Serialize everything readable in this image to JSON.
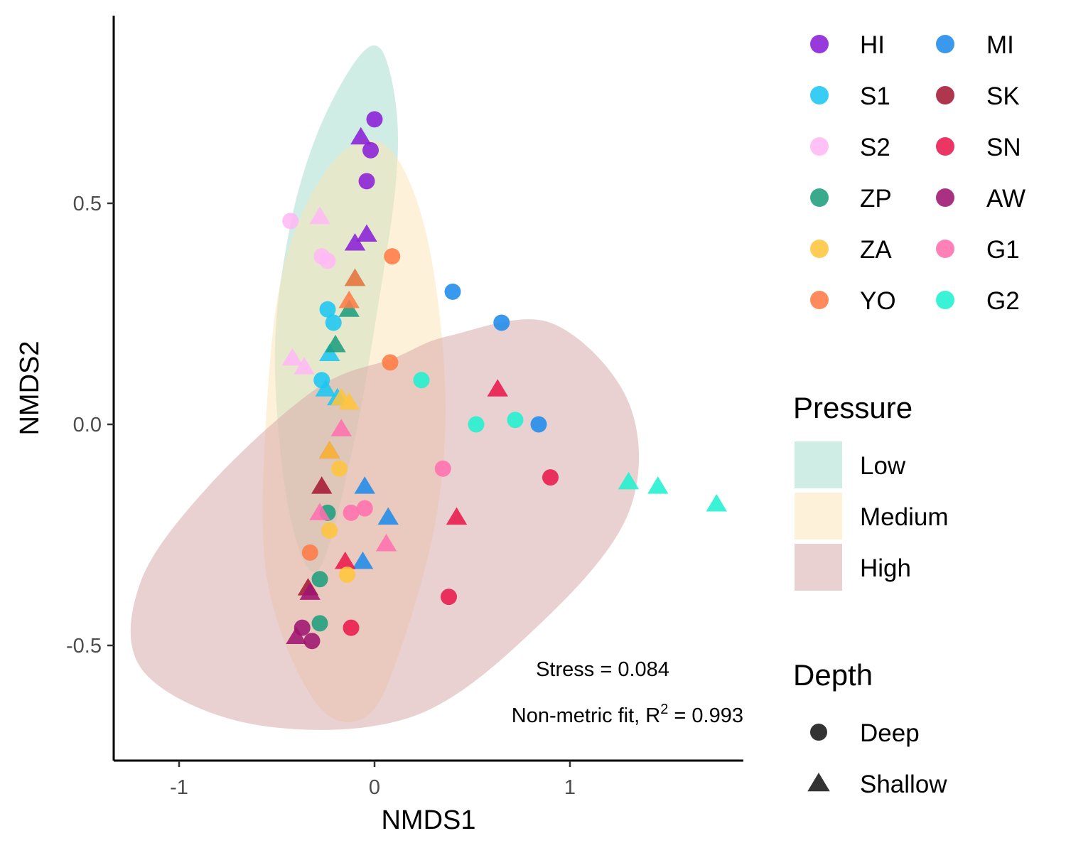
{
  "chart_data": {
    "type": "scatter",
    "xlabel": "NMDS1",
    "ylabel": "NMDS2",
    "xlim": [
      -1.36,
      1.89
    ],
    "ylim": [
      -0.76,
      0.93
    ],
    "xticks": [
      -1,
      0,
      1
    ],
    "xtick_labels": [
      "-1",
      "0",
      "1"
    ],
    "yticks": [
      0.5,
      0.0,
      -0.5
    ],
    "ytick_labels": [
      "0.5",
      "0.0",
      "-0.5"
    ],
    "grid": false,
    "legend_position": "right",
    "annotations": {
      "stress": "Stress = 0.084",
      "fit_prefix": "Non-metric fit, R",
      "fit_superscript": "2",
      "fit_suffix": " = 0.993"
    },
    "site_legend": {
      "title": "",
      "entries": [
        {
          "name": "HI",
          "color": "#8A1FD6"
        },
        {
          "name": "MI",
          "color": "#1F8BEA"
        },
        {
          "name": "S1",
          "color": "#1CC6F2"
        },
        {
          "name": "SK",
          "color": "#A51A36"
        },
        {
          "name": "S2",
          "color": "#FFB8F5"
        },
        {
          "name": "SN",
          "color": "#E8194C"
        },
        {
          "name": "ZP",
          "color": "#1E9E7E"
        },
        {
          "name": "AW",
          "color": "#9E1571"
        },
        {
          "name": "ZA",
          "color": "#FFC53D"
        },
        {
          "name": "G1",
          "color": "#FF6FAE"
        },
        {
          "name": "YO",
          "color": "#FF7B45"
        },
        {
          "name": "G2",
          "color": "#1FF0CF"
        }
      ]
    },
    "pressure_legend": {
      "title": "Pressure",
      "entries": [
        {
          "name": "Low",
          "color": "#9FDBCB"
        },
        {
          "name": "Medium",
          "color": "#FDE3B3"
        },
        {
          "name": "High",
          "color": "#D6A3A3"
        }
      ]
    },
    "depth_legend": {
      "title": "Depth",
      "entries": [
        {
          "name": "Deep",
          "shape": "circle"
        },
        {
          "name": "Shallow",
          "shape": "triangle"
        }
      ]
    },
    "ellipses": [
      {
        "name": "Low",
        "color": "#9FDBCB",
        "opacity": 0.5,
        "points": [
          [
            0.03,
            0.85
          ],
          [
            0.11,
            0.72
          ],
          [
            0.11,
            0.55
          ],
          [
            0.03,
            0.3
          ],
          [
            -0.11,
            -0.05
          ],
          [
            -0.29,
            -0.33
          ],
          [
            -0.44,
            -0.19
          ],
          [
            -0.51,
            0.15
          ],
          [
            -0.44,
            0.43
          ],
          [
            -0.3,
            0.65
          ],
          [
            -0.1,
            0.82
          ]
        ]
      },
      {
        "name": "Medium",
        "color": "#FDE3B3",
        "opacity": 0.5,
        "points": [
          [
            0.06,
            0.63
          ],
          [
            0.26,
            0.44
          ],
          [
            0.36,
            0.1
          ],
          [
            0.32,
            -0.2
          ],
          [
            0.14,
            -0.5
          ],
          [
            -0.04,
            -0.66
          ],
          [
            -0.3,
            -0.63
          ],
          [
            -0.55,
            -0.35
          ],
          [
            -0.55,
            0.05
          ],
          [
            -0.45,
            0.38
          ],
          [
            -0.2,
            0.6
          ]
        ]
      },
      {
        "name": "High",
        "color": "#D6A3A3",
        "opacity": 0.5,
        "points": [
          [
            0.38,
            0.2
          ],
          [
            0.9,
            0.23
          ],
          [
            1.3,
            0.05
          ],
          [
            1.3,
            -0.2
          ],
          [
            0.85,
            -0.45
          ],
          [
            0.2,
            -0.66
          ],
          [
            -0.6,
            -0.68
          ],
          [
            -1.18,
            -0.56
          ],
          [
            -1.2,
            -0.36
          ],
          [
            -0.85,
            -0.14
          ],
          [
            -0.3,
            0.08
          ],
          [
            0.1,
            0.15
          ]
        ]
      }
    ],
    "series": [
      {
        "name": "HI",
        "color": "#8A1FD6",
        "points": [
          [
            0.0,
            0.69,
            "Deep"
          ],
          [
            -0.02,
            0.62,
            "Deep"
          ],
          [
            -0.04,
            0.55,
            "Deep"
          ],
          [
            -0.07,
            0.65,
            "Shallow"
          ],
          [
            -0.04,
            0.43,
            "Shallow"
          ],
          [
            -0.1,
            0.41,
            "Shallow"
          ]
        ]
      },
      {
        "name": "MI",
        "color": "#1F8BEA",
        "points": [
          [
            0.4,
            0.3,
            "Deep"
          ],
          [
            0.65,
            0.23,
            "Deep"
          ],
          [
            0.84,
            0.0,
            "Deep"
          ],
          [
            -0.05,
            -0.14,
            "Shallow"
          ],
          [
            0.07,
            -0.21,
            "Shallow"
          ],
          [
            -0.06,
            -0.31,
            "Shallow"
          ]
        ]
      },
      {
        "name": "S1",
        "color": "#1CC6F2",
        "points": [
          [
            -0.24,
            0.26,
            "Deep"
          ],
          [
            -0.21,
            0.23,
            "Deep"
          ],
          [
            -0.27,
            0.1,
            "Deep"
          ],
          [
            -0.23,
            0.16,
            "Shallow"
          ],
          [
            -0.25,
            0.08,
            "Shallow"
          ],
          [
            -0.19,
            0.06,
            "Shallow"
          ]
        ]
      },
      {
        "name": "SK",
        "color": "#A51A36",
        "points": [
          [
            -0.23,
            -0.06,
            "Shallow"
          ],
          [
            -0.27,
            -0.14,
            "Shallow"
          ],
          [
            -0.34,
            -0.37,
            "Shallow"
          ]
        ]
      },
      {
        "name": "S2",
        "color": "#FFB8F5",
        "points": [
          [
            -0.43,
            0.46,
            "Deep"
          ],
          [
            -0.27,
            0.38,
            "Deep"
          ],
          [
            -0.24,
            0.37,
            "Deep"
          ],
          [
            -0.28,
            0.47,
            "Shallow"
          ],
          [
            -0.42,
            0.15,
            "Shallow"
          ],
          [
            -0.36,
            0.13,
            "Shallow"
          ]
        ]
      },
      {
        "name": "SN",
        "color": "#E8194C",
        "points": [
          [
            0.9,
            -0.12,
            "Deep"
          ],
          [
            0.38,
            -0.39,
            "Deep"
          ],
          [
            -0.12,
            -0.46,
            "Deep"
          ],
          [
            0.63,
            0.08,
            "Shallow"
          ],
          [
            0.42,
            -0.21,
            "Shallow"
          ],
          [
            -0.15,
            -0.31,
            "Shallow"
          ]
        ]
      },
      {
        "name": "ZP",
        "color": "#1E9E7E",
        "points": [
          [
            -0.24,
            -0.2,
            "Deep"
          ],
          [
            -0.28,
            -0.35,
            "Deep"
          ],
          [
            -0.28,
            -0.45,
            "Deep"
          ],
          [
            -0.1,
            0.33,
            "Shallow"
          ],
          [
            -0.13,
            0.26,
            "Shallow"
          ],
          [
            -0.2,
            0.18,
            "Shallow"
          ]
        ]
      },
      {
        "name": "AW",
        "color": "#9E1571",
        "points": [
          [
            -0.37,
            -0.46,
            "Deep"
          ],
          [
            -0.32,
            -0.49,
            "Deep"
          ],
          [
            -0.4,
            -0.48,
            "Shallow"
          ],
          [
            -0.33,
            -0.38,
            "Shallow"
          ]
        ]
      },
      {
        "name": "ZA",
        "color": "#FFC53D",
        "points": [
          [
            -0.18,
            -0.1,
            "Deep"
          ],
          [
            -0.23,
            -0.24,
            "Deep"
          ],
          [
            -0.14,
            -0.34,
            "Deep"
          ],
          [
            -0.17,
            0.06,
            "Shallow"
          ],
          [
            -0.13,
            0.05,
            "Shallow"
          ],
          [
            -0.23,
            -0.06,
            "Shallow"
          ]
        ]
      },
      {
        "name": "G1",
        "color": "#FF6FAE",
        "points": [
          [
            0.35,
            -0.1,
            "Deep"
          ],
          [
            -0.12,
            -0.2,
            "Deep"
          ],
          [
            -0.05,
            -0.19,
            "Deep"
          ],
          [
            -0.17,
            -0.01,
            "Shallow"
          ],
          [
            -0.28,
            -0.2,
            "Shallow"
          ],
          [
            0.06,
            -0.27,
            "Shallow"
          ]
        ]
      },
      {
        "name": "G2",
        "color": "#1FF0CF",
        "points": [
          [
            0.24,
            0.1,
            "Deep"
          ],
          [
            0.52,
            0.0,
            "Deep"
          ],
          [
            0.72,
            0.01,
            "Deep"
          ],
          [
            1.3,
            -0.13,
            "Shallow"
          ],
          [
            1.45,
            -0.14,
            "Shallow"
          ],
          [
            1.75,
            -0.18,
            "Shallow"
          ]
        ]
      },
      {
        "name": "YO",
        "color": "#FF7B45",
        "points": [
          [
            0.09,
            0.38,
            "Deep"
          ],
          [
            0.08,
            0.14,
            "Deep"
          ],
          [
            -0.33,
            -0.29,
            "Deep"
          ],
          [
            -0.1,
            0.33,
            "Shallow"
          ],
          [
            -0.13,
            0.28,
            "Shallow"
          ]
        ]
      }
    ]
  }
}
